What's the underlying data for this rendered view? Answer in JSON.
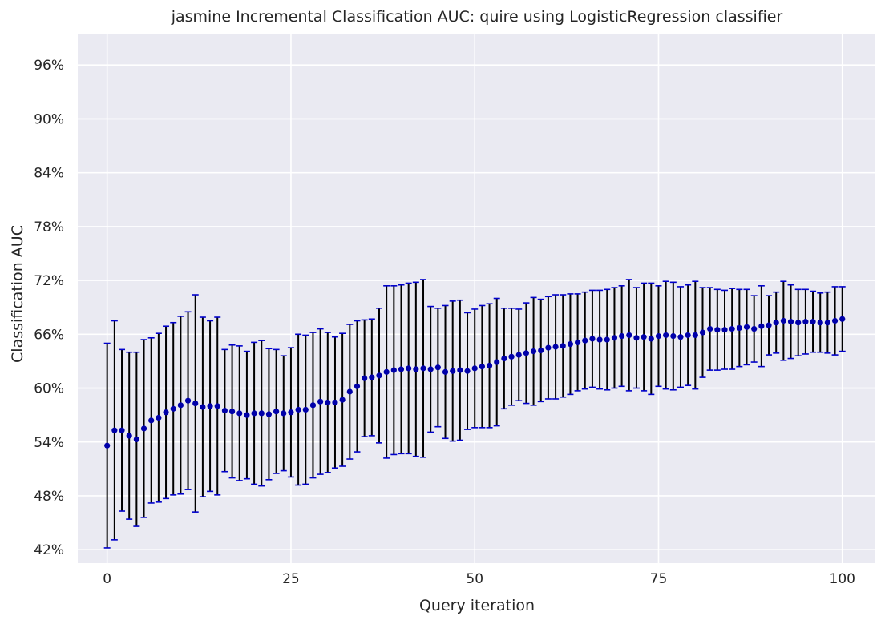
{
  "chart_data": {
    "type": "scatter",
    "title": "jasmine Incremental Classification AUC: quire using LogisticRegression classifier",
    "xlabel": "Query iteration",
    "ylabel": "Classification AUC",
    "xlim": [
      -4,
      104.5
    ],
    "ylim": [
      40.5,
      99.5
    ],
    "xticks": [
      0,
      25,
      50,
      75,
      100
    ],
    "xtick_labels": [
      "0",
      "25",
      "50",
      "75",
      "100"
    ],
    "yticks": [
      42,
      48,
      54,
      60,
      66,
      72,
      78,
      84,
      90,
      96
    ],
    "ytick_labels": [
      "42%",
      "48%",
      "54%",
      "60%",
      "66%",
      "72%",
      "78%",
      "84%",
      "90%",
      "96%"
    ],
    "grid": true,
    "error_bars": true,
    "colors": {
      "background": "#eaeaf2",
      "grid": "#ffffff",
      "marker": "#0000aa",
      "errorbar": "#000000",
      "cap": "#0000cc"
    },
    "x": [
      0,
      1,
      2,
      3,
      4,
      5,
      6,
      7,
      8,
      9,
      10,
      11,
      12,
      13,
      14,
      15,
      16,
      17,
      18,
      19,
      20,
      21,
      22,
      23,
      24,
      25,
      26,
      27,
      28,
      29,
      30,
      31,
      32,
      33,
      34,
      35,
      36,
      37,
      38,
      39,
      40,
      41,
      42,
      43,
      44,
      45,
      46,
      47,
      48,
      49,
      50,
      51,
      52,
      53,
      54,
      55,
      56,
      57,
      58,
      59,
      60,
      61,
      62,
      63,
      64,
      65,
      66,
      67,
      68,
      69,
      70,
      71,
      72,
      73,
      74,
      75,
      76,
      77,
      78,
      79,
      80,
      81,
      82,
      83,
      84,
      85,
      86,
      87,
      88,
      89,
      90,
      91,
      92,
      93,
      94,
      95,
      96,
      97,
      98,
      99,
      100
    ],
    "y": [
      53.6,
      55.3,
      55.3,
      54.7,
      54.3,
      55.5,
      56.4,
      56.7,
      57.3,
      57.7,
      58.1,
      58.6,
      58.3,
      57.9,
      58.0,
      58.0,
      57.5,
      57.4,
      57.2,
      57.0,
      57.2,
      57.2,
      57.1,
      57.4,
      57.2,
      57.3,
      57.6,
      57.6,
      58.1,
      58.5,
      58.4,
      58.4,
      58.7,
      59.6,
      60.2,
      61.1,
      61.2,
      61.4,
      61.8,
      62.0,
      62.1,
      62.2,
      62.1,
      62.2,
      62.1,
      62.3,
      61.8,
      61.9,
      62.0,
      61.9,
      62.2,
      62.4,
      62.5,
      62.9,
      63.3,
      63.5,
      63.7,
      63.9,
      64.1,
      64.2,
      64.5,
      64.6,
      64.7,
      64.9,
      65.1,
      65.3,
      65.5,
      65.4,
      65.4,
      65.6,
      65.8,
      65.9,
      65.6,
      65.7,
      65.5,
      65.8,
      65.9,
      65.8,
      65.7,
      65.9,
      65.9,
      66.2,
      66.6,
      66.5,
      66.5,
      66.6,
      66.7,
      66.8,
      66.6,
      66.9,
      67.0,
      67.3,
      67.5,
      67.4,
      67.3,
      67.4,
      67.4,
      67.3,
      67.3,
      67.5,
      67.7
    ],
    "yerr": [
      11.4,
      12.2,
      9.0,
      9.3,
      9.7,
      9.9,
      9.2,
      9.4,
      9.6,
      9.6,
      9.9,
      9.9,
      12.1,
      10.0,
      9.5,
      9.9,
      6.8,
      7.4,
      7.5,
      7.1,
      7.9,
      8.1,
      7.3,
      6.9,
      6.4,
      7.2,
      8.4,
      8.3,
      8.1,
      8.1,
      7.8,
      7.3,
      7.4,
      7.5,
      7.3,
      6.5,
      6.5,
      7.5,
      9.6,
      9.4,
      9.4,
      9.5,
      9.7,
      9.9,
      7.0,
      6.6,
      7.4,
      7.8,
      7.8,
      6.5,
      6.6,
      6.8,
      6.9,
      7.1,
      5.6,
      5.4,
      5.1,
      5.6,
      6.0,
      5.7,
      5.7,
      5.8,
      5.7,
      5.6,
      5.4,
      5.4,
      5.4,
      5.5,
      5.6,
      5.6,
      5.6,
      6.2,
      5.6,
      6.0,
      6.2,
      5.6,
      6.0,
      6.0,
      5.6,
      5.6,
      6.0,
      5.0,
      4.6,
      4.5,
      4.4,
      4.5,
      4.3,
      4.2,
      3.7,
      4.5,
      3.3,
      3.4,
      4.4,
      4.1,
      3.7,
      3.6,
      3.4,
      3.3,
      3.4,
      3.8,
      3.6
    ]
  }
}
